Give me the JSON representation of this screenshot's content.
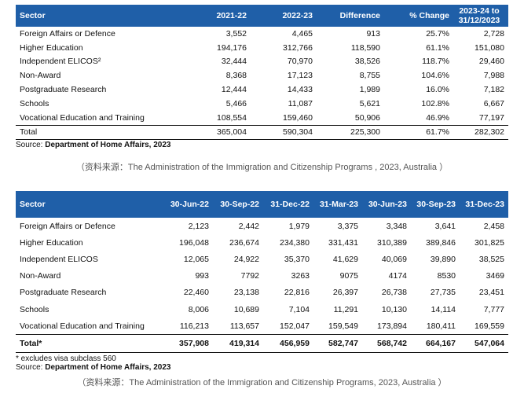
{
  "table1": {
    "headers": [
      "Sector",
      "2021-22",
      "2022-23",
      "Difference",
      "% Change",
      "2023-24 to 31/12/2023"
    ],
    "rows": [
      [
        "Foreign Affairs or Defence",
        "3,552",
        "4,465",
        "913",
        "25.7%",
        "2,728"
      ],
      [
        "Higher Education",
        "194,176",
        "312,766",
        "118,590",
        "61.1%",
        "151,080"
      ],
      [
        "Independent ELICOS²",
        "32,444",
        "70,970",
        "38,526",
        "118.7%",
        "29,460"
      ],
      [
        "Non-Award",
        "8,368",
        "17,123",
        "8,755",
        "104.6%",
        "7,988"
      ],
      [
        "Postgraduate Research",
        "12,444",
        "14,433",
        "1,989",
        "16.0%",
        "7,182"
      ],
      [
        "Schools",
        "5,466",
        "11,087",
        "5,621",
        "102.8%",
        "6,667"
      ],
      [
        "Vocational Education and Training",
        "108,554",
        "159,460",
        "50,906",
        "46.9%",
        "77,197"
      ]
    ],
    "total": [
      "Total",
      "365,004",
      "590,304",
      "225,300",
      "61.7%",
      "282,302"
    ],
    "source_label": "Source:",
    "source_value": "Department of Home Affairs, 2023"
  },
  "caption1": "（资料来源：The Administration of the Immigration and Citizenship Programs , 2023, Australia ）",
  "table2": {
    "headers": [
      "Sector",
      "30-Jun-22",
      "30-Sep-22",
      "31-Dec-22",
      "31-Mar-23",
      "30-Jun-23",
      "30-Sep-23",
      "31-Dec-23"
    ],
    "rows": [
      [
        "Foreign Affairs or Defence",
        "2,123",
        "2,442",
        "1,979",
        "3,375",
        "3,348",
        "3,641",
        "2,458"
      ],
      [
        "Higher Education",
        "196,048",
        "236,674",
        "234,380",
        "331,431",
        "310,389",
        "389,846",
        "301,825"
      ],
      [
        "Independent ELICOS",
        "12,065",
        "24,922",
        "35,370",
        "41,629",
        "40,069",
        "39,890",
        "38,525"
      ],
      [
        "Non-Award",
        "993",
        "7792",
        "3263",
        "9075",
        "4174",
        "8530",
        "3469"
      ],
      [
        "Postgraduate Research",
        "22,460",
        "23,138",
        "22,816",
        "26,397",
        "26,738",
        "27,735",
        "23,451"
      ],
      [
        "Schools",
        "8,006",
        "10,689",
        "7,104",
        "11,291",
        "10,130",
        "14,114",
        "7,777"
      ],
      [
        "Vocational Education and Training",
        "116,213",
        "113,657",
        "152,047",
        "159,549",
        "173,894",
        "180,411",
        "169,559"
      ]
    ],
    "total": [
      "Total*",
      "357,908",
      "419,314",
      "456,959",
      "582,747",
      "568,742",
      "664,167",
      "547,064"
    ],
    "note": "* excludes visa subclass 560",
    "source_label": "Source:",
    "source_value": "Department of Home Affairs, 2023"
  },
  "caption2": "（资料来源：The Administration of the Immigration and Citizenship Programs, 2023, Australia ）",
  "colors": {
    "header_bg": "#1f5fa8",
    "header_text": "#ffffff",
    "caption": "#555555"
  }
}
